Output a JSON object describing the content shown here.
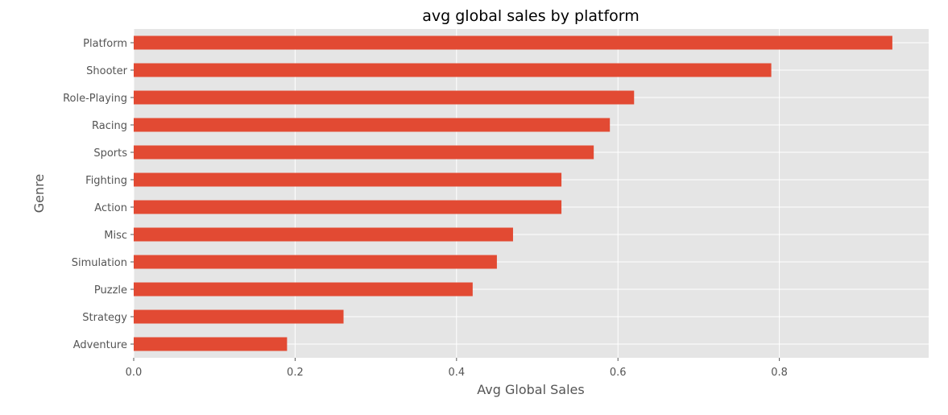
{
  "chart_data": {
    "type": "bar",
    "orientation": "horizontal",
    "title": "avg global sales by platform",
    "xlabel": "Avg Global Sales",
    "ylabel": "Genre",
    "categories": [
      "Platform",
      "Shooter",
      "Role-Playing",
      "Racing",
      "Sports",
      "Fighting",
      "Action",
      "Misc",
      "Simulation",
      "Puzzle",
      "Strategy",
      "Adventure"
    ],
    "values": [
      0.94,
      0.79,
      0.62,
      0.59,
      0.57,
      0.53,
      0.53,
      0.47,
      0.45,
      0.42,
      0.26,
      0.19
    ],
    "xlim": [
      0,
      0.985
    ],
    "xticks": [
      0.0,
      0.2,
      0.4,
      0.6,
      0.8
    ],
    "xtick_labels": [
      "0.0",
      "0.2",
      "0.4",
      "0.6",
      "0.8"
    ],
    "grid": true,
    "bar_color": "#e24a33",
    "background_color": "#e5e5e5"
  }
}
